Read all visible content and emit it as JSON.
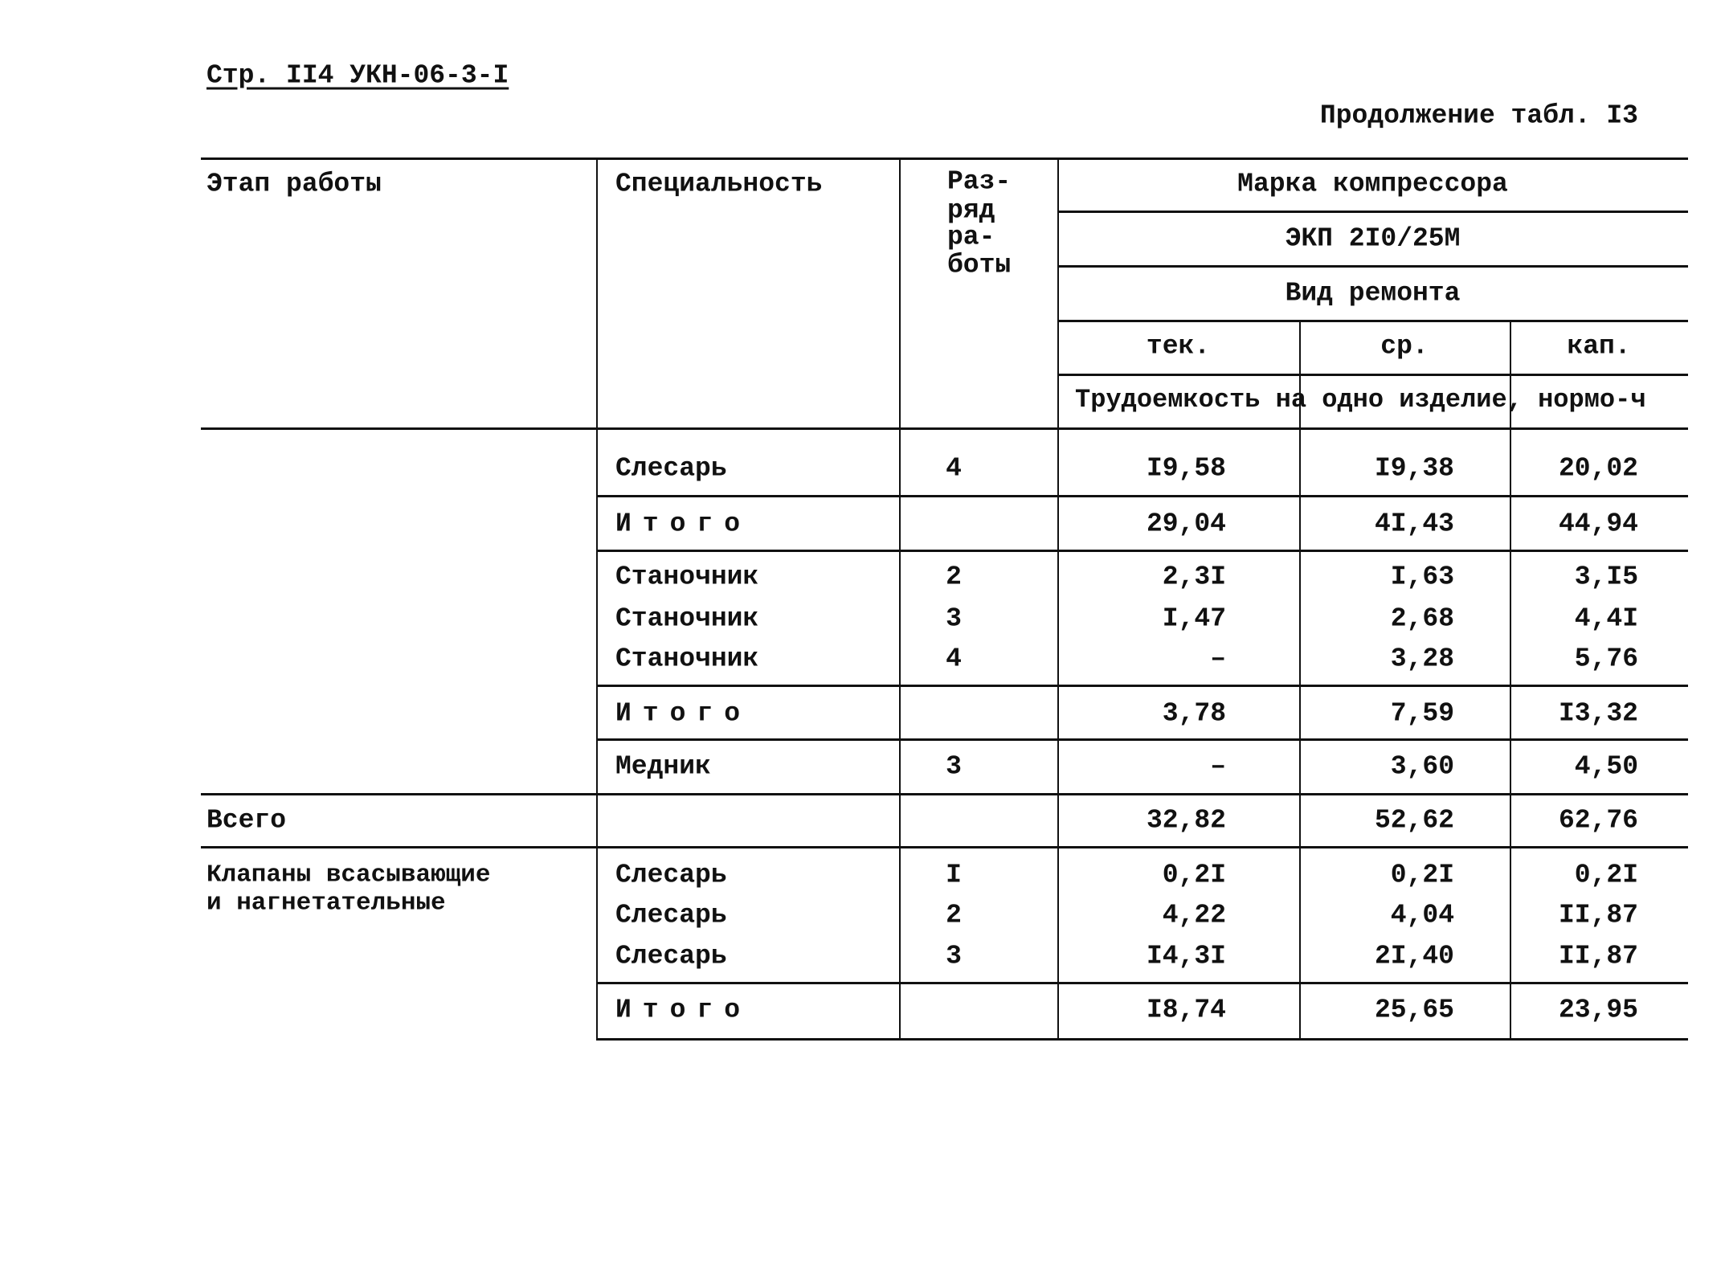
{
  "page_header": {
    "ref": "Стр. II4 УКН-06-3-I",
    "continuation": "Продолжение табл. I3"
  },
  "table": {
    "headers": {
      "stage": "Этап работы",
      "specialty": "Специальность",
      "grade": [
        "Раз-",
        "ряд",
        "ра-",
        "боты"
      ],
      "compressor_brand": "Марка компрессора",
      "compressor_model": "ЭКП 2I0/25М",
      "repair_type": "Вид ремонта",
      "repair_kinds": [
        "тек.",
        "ср.",
        "кап."
      ],
      "labor": "Трудоемкость на одно изделие, нормо-ч"
    },
    "rows": [
      {
        "stage": "",
        "specialty": "Слесарь",
        "grade": "4",
        "values": [
          "I9,58",
          "I9,38",
          "20,02"
        ]
      },
      {
        "stage": "",
        "specialty": "Итого",
        "grade": "",
        "values": [
          "29,04",
          "4I,43",
          "44,94"
        ],
        "total": true
      },
      {
        "stage": "",
        "specialty": "Станочник",
        "grade": "2",
        "values": [
          "2,3I",
          "I,63",
          "3,I5"
        ]
      },
      {
        "stage": "",
        "specialty": "Станочник",
        "grade": "3",
        "values": [
          "I,47",
          "2,68",
          "4,4I"
        ]
      },
      {
        "stage": "",
        "specialty": "Станочник",
        "grade": "4",
        "values": [
          "–",
          "3,28",
          "5,76"
        ]
      },
      {
        "stage": "",
        "specialty": "Итого",
        "grade": "",
        "values": [
          "3,78",
          "7,59",
          "I3,32"
        ],
        "total": true
      },
      {
        "stage": "",
        "specialty": "Медник",
        "grade": "3",
        "values": [
          "–",
          "3,60",
          "4,50"
        ]
      },
      {
        "stage": "Всего",
        "specialty": "",
        "grade": "",
        "values": [
          "32,82",
          "52,62",
          "62,76"
        ]
      },
      {
        "stage": "Клапаны всасывающие",
        "specialty": "Слесарь",
        "grade": "I",
        "values": [
          "0,2I",
          "0,2I",
          "0,2I"
        ]
      },
      {
        "stage": "и нагнетательные",
        "specialty": "Слесарь",
        "grade": "2",
        "values": [
          "4,22",
          "4,04",
          "II,87"
        ]
      },
      {
        "stage": "",
        "specialty": "Слесарь",
        "grade": "3",
        "values": [
          "I4,3I",
          "2I,40",
          "II,87"
        ]
      },
      {
        "stage": "",
        "specialty": "Итого",
        "grade": "",
        "values": [
          "I8,74",
          "25,65",
          "23,95"
        ],
        "total": true
      }
    ]
  }
}
